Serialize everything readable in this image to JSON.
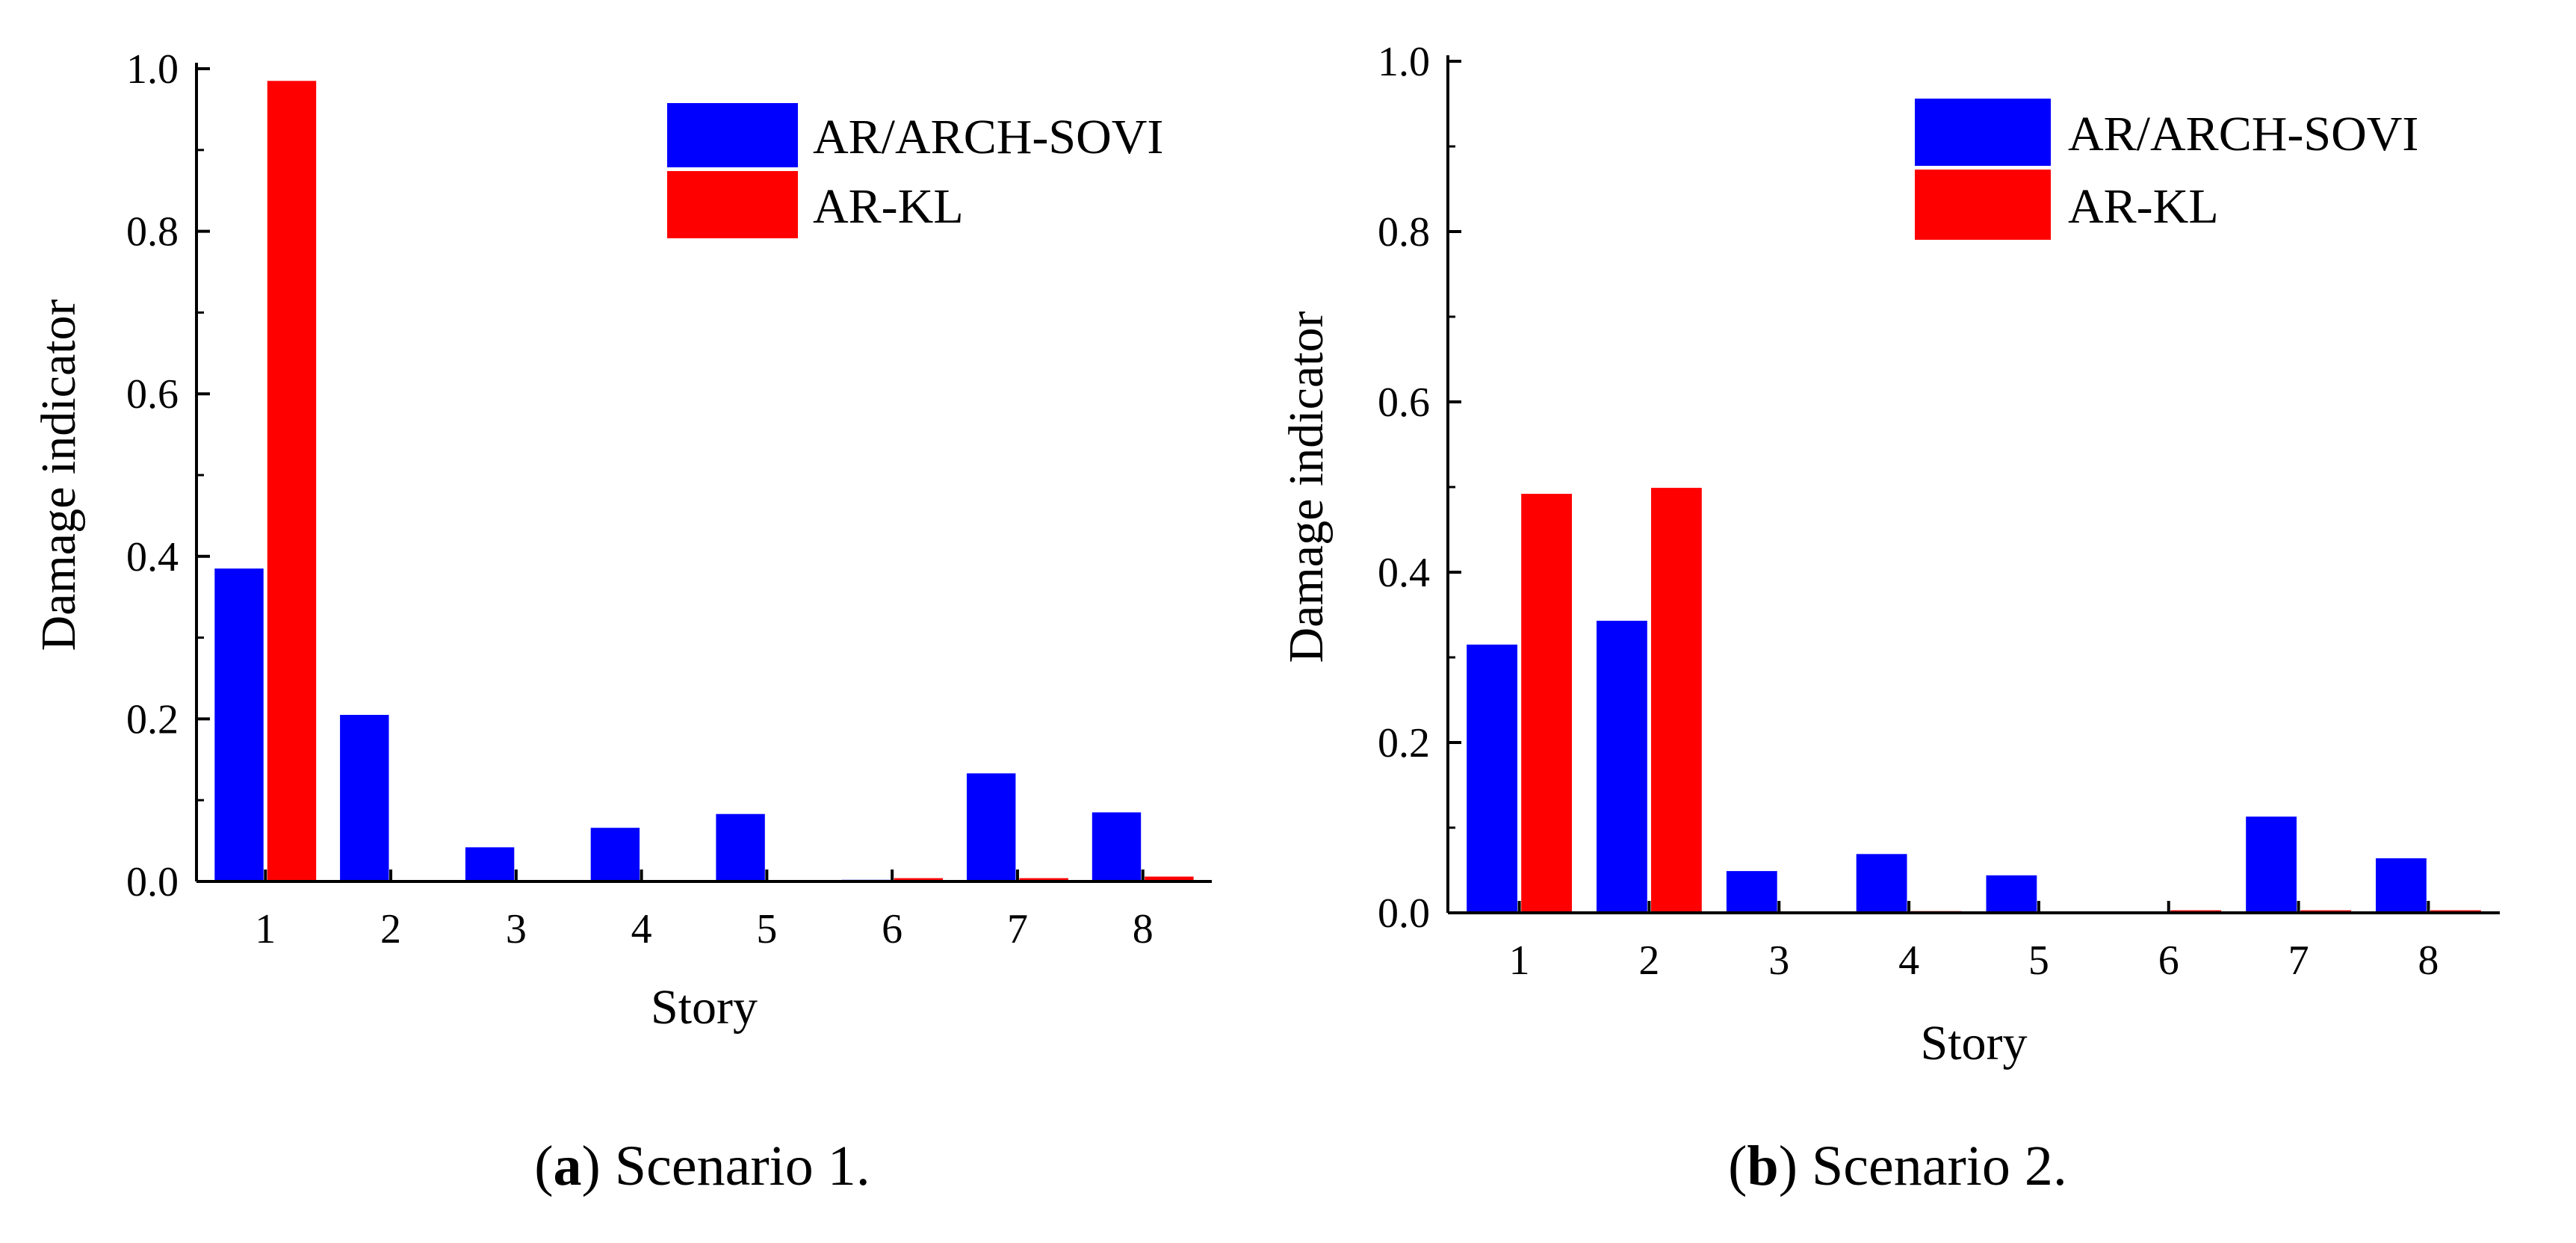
{
  "colors": {
    "ar_arch_sovi": "#0000FF",
    "ar_kl": "#FF0000",
    "axis": "#000000"
  },
  "chart_data": [
    {
      "type": "bar",
      "title": "",
      "xlabel": "Story",
      "ylabel": "Damage indicator",
      "ylim": [
        0,
        1.0
      ],
      "yticks": [
        "0.0",
        "0.2",
        "0.4",
        "0.6",
        "0.8",
        "1.0"
      ],
      "categories": [
        "1",
        "2",
        "3",
        "4",
        "5",
        "6",
        "7",
        "8"
      ],
      "legend_position": "top-right",
      "series": [
        {
          "name": "AR/ARCH-SOVI",
          "color": "#0000FF",
          "values": [
            0.385,
            0.205,
            0.042,
            0.066,
            0.083,
            0.002,
            0.133,
            0.085
          ]
        },
        {
          "name": "AR-KL",
          "color": "#FF0000",
          "values": [
            0.985,
            0.0,
            0.0,
            0.0,
            0.0,
            0.004,
            0.004,
            0.006
          ]
        }
      ],
      "caption": {
        "label": "a",
        "text": "Scenario 1."
      }
    },
    {
      "type": "bar",
      "title": "",
      "xlabel": "Story",
      "ylabel": "Damage indicator",
      "ylim": [
        0,
        1.0
      ],
      "yticks": [
        "0.0",
        "0.2",
        "0.4",
        "0.6",
        "0.8",
        "1.0"
      ],
      "categories": [
        "1",
        "2",
        "3",
        "4",
        "5",
        "6",
        "7",
        "8"
      ],
      "legend_position": "top-right",
      "series": [
        {
          "name": "AR/ARCH-SOVI",
          "color": "#0000FF",
          "values": [
            0.315,
            0.343,
            0.049,
            0.069,
            0.044,
            0.0,
            0.113,
            0.064
          ]
        },
        {
          "name": "AR-KL",
          "color": "#FF0000",
          "values": [
            0.492,
            0.499,
            0.0,
            0.002,
            0.0,
            0.003,
            0.003,
            0.003
          ]
        }
      ],
      "caption": {
        "label": "b",
        "text": "Scenario 2."
      }
    }
  ]
}
